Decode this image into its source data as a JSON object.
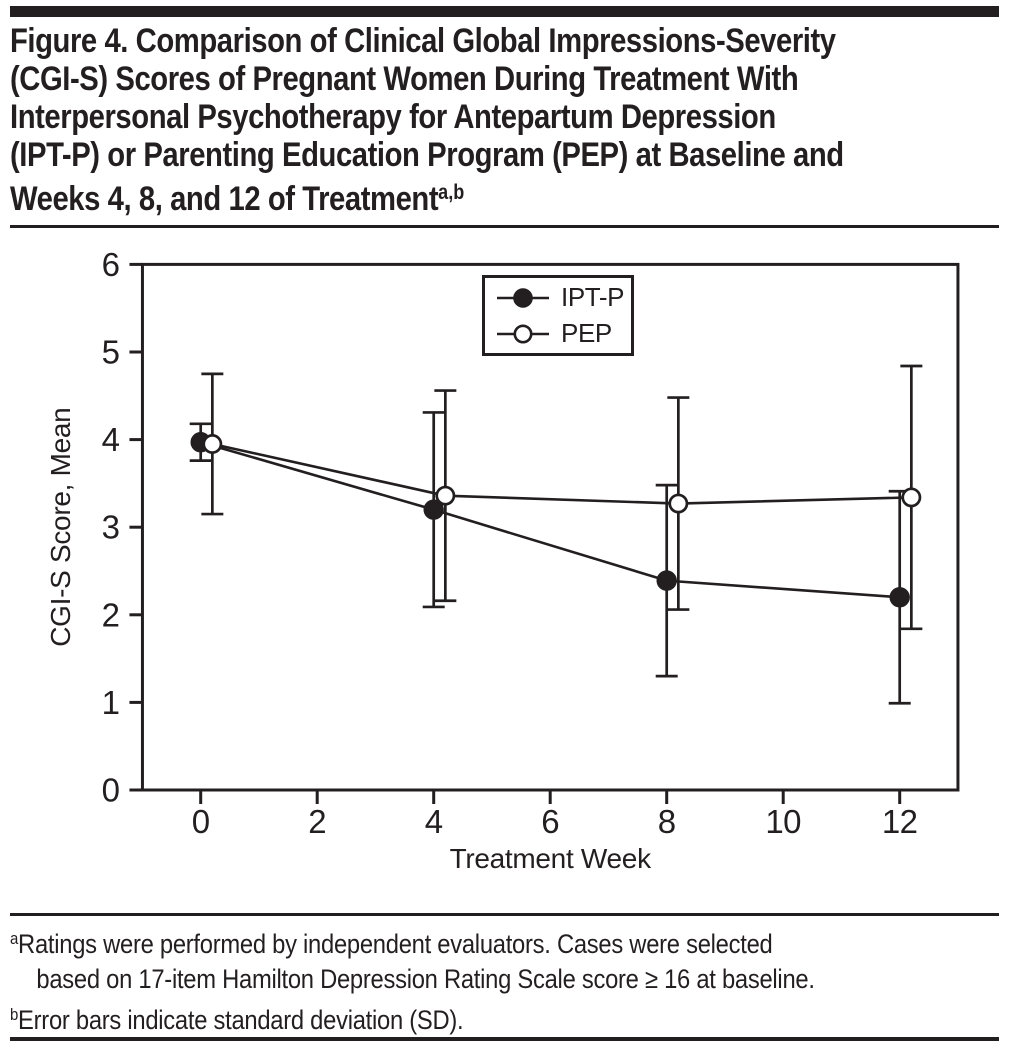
{
  "colors": {
    "ink": "#231f20",
    "background": "#ffffff"
  },
  "figure": {
    "title_lines": [
      "Figure 4. Comparison of Clinical Global Impressions-Severity",
      "(CGI-S) Scores of Pregnant Women During Treatment With",
      "Interpersonal Psychotherapy for Antepartum Depression",
      "(IPT-P) or Parenting Education Program (PEP) at Baseline and",
      "Weeks 4, 8, and 12 of Treatment"
    ],
    "title_superscript": "a,b"
  },
  "chart_data": {
    "type": "line",
    "x": [
      0,
      4,
      8,
      12
    ],
    "series": [
      {
        "name": "IPT-P",
        "marker": "filled-circle",
        "values": [
          3.97,
          3.2,
          2.39,
          2.2
        ],
        "sd": [
          0.21,
          1.11,
          1.09,
          1.21
        ],
        "x_display_offset_weeks": 0
      },
      {
        "name": "PEP",
        "marker": "open-circle",
        "values": [
          3.95,
          3.36,
          3.27,
          3.34
        ],
        "sd": [
          0.8,
          1.2,
          1.21,
          1.5
        ],
        "x_display_offset_weeks": 0.2
      }
    ],
    "xlabel": "Treatment Week",
    "ylabel": "CGI-S Score, Mean",
    "xticks": [
      0,
      2,
      4,
      6,
      8,
      10,
      12
    ],
    "yticks": [
      0,
      1,
      2,
      3,
      4,
      5,
      6
    ],
    "xlim": [
      -1,
      13
    ],
    "ylim": [
      0,
      6
    ],
    "grid": false,
    "legend_position": "inside-top-center",
    "error_bars": "standard deviation (SD)",
    "line_color": "#231f20"
  },
  "footnotes": {
    "a_sup": "a",
    "a_line1": "Ratings were performed by independent evaluators. Cases were selected",
    "a_line2": "based on 17-item Hamilton Depression Rating Scale score ≥ 16 at baseline.",
    "b_sup": "b",
    "b_text": "Error bars indicate standard deviation (SD)."
  }
}
